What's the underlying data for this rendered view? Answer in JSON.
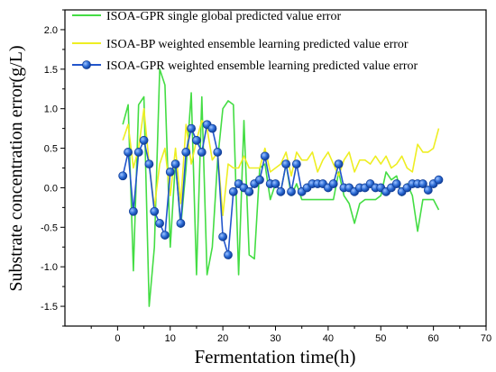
{
  "chart_data": {
    "type": "line",
    "xlabel": "Fermentation time(h)",
    "ylabel": "Substrate concentration error(g/L)",
    "xlim": [
      -10,
      70
    ],
    "ylim": [
      -1.75,
      2.25
    ],
    "xticks": [
      0,
      10,
      20,
      30,
      40,
      50,
      60,
      70
    ],
    "yticks": [
      -1.5,
      -1.0,
      -0.5,
      0.0,
      0.5,
      1.0,
      1.5,
      2.0
    ],
    "ytick_labels": [
      "-1.5",
      "-1.0",
      "-0.5",
      "0.0",
      "0.5",
      "1.0",
      "1.5",
      "2.0"
    ],
    "legend_position": "top",
    "series": [
      {
        "name": "ISOA-GPR single global predicted value error",
        "color": "#44dd44",
        "marker": "none",
        "x": [
          1,
          2,
          3,
          4,
          5,
          6,
          7,
          8,
          9,
          10,
          11,
          12,
          13,
          14,
          15,
          16,
          17,
          18,
          19,
          20,
          21,
          22,
          23,
          24,
          25,
          26,
          27,
          28,
          29,
          30,
          31,
          32,
          33,
          34,
          35,
          36,
          37,
          38,
          39,
          40,
          41,
          42,
          43,
          44,
          45,
          46,
          47,
          48,
          49,
          50,
          51,
          52,
          53,
          54,
          55,
          56,
          57,
          58,
          59,
          60,
          61
        ],
        "y": [
          0.8,
          1.05,
          -1.05,
          1.05,
          1.15,
          -1.5,
          -0.75,
          1.5,
          1.3,
          -0.75,
          0.35,
          -0.5,
          0.25,
          1.2,
          -1.1,
          1.15,
          -1.1,
          -0.75,
          0.35,
          1.0,
          1.1,
          1.05,
          -1.1,
          0.85,
          -0.85,
          -0.9,
          0.25,
          0.3,
          -0.15,
          0.05,
          -0.05,
          0.3,
          -0.1,
          0.05,
          -0.15,
          -0.15,
          -0.15,
          -0.15,
          -0.15,
          -0.15,
          -0.15,
          0.2,
          -0.1,
          -0.2,
          -0.45,
          -0.2,
          -0.15,
          -0.15,
          -0.15,
          -0.1,
          0.2,
          0.1,
          0.15,
          -0.1,
          0.05,
          -0.1,
          -0.55,
          -0.15,
          -0.15,
          -0.15,
          -0.28
        ]
      },
      {
        "name": "ISOA-BP weighted ensemble learning predicted value error",
        "color": "#eeee22",
        "marker": "none",
        "x": [
          1,
          2,
          3,
          4,
          5,
          6,
          7,
          8,
          9,
          10,
          11,
          12,
          13,
          14,
          15,
          16,
          17,
          18,
          19,
          20,
          21,
          22,
          23,
          24,
          25,
          26,
          27,
          28,
          29,
          30,
          31,
          32,
          33,
          34,
          35,
          36,
          37,
          38,
          39,
          40,
          41,
          42,
          43,
          44,
          45,
          46,
          47,
          48,
          49,
          50,
          51,
          52,
          53,
          54,
          55,
          56,
          57,
          58,
          59,
          60,
          61
        ],
        "y": [
          0.6,
          0.8,
          0.25,
          0.5,
          1.0,
          0.3,
          -0.25,
          0.3,
          0.5,
          -0.1,
          0.5,
          -0.2,
          0.8,
          0.3,
          0.6,
          0.85,
          0.75,
          0.35,
          0.45,
          -0.35,
          0.3,
          0.25,
          0.25,
          0.4,
          0.25,
          0.25,
          0.25,
          0.5,
          0.2,
          0.25,
          0.3,
          0.45,
          0.15,
          0.45,
          0.35,
          0.35,
          0.45,
          0.2,
          0.35,
          0.45,
          0.3,
          0.15,
          0.35,
          0.45,
          0.2,
          0.35,
          0.35,
          0.3,
          0.4,
          0.3,
          0.4,
          0.25,
          0.3,
          0.4,
          0.25,
          0.2,
          0.55,
          0.45,
          0.45,
          0.5,
          0.75
        ]
      },
      {
        "name": "ISOA-GPR weighted ensemble learning predicted value error",
        "color": "#2255cc",
        "marker": "circle",
        "x": [
          1,
          2,
          3,
          4,
          5,
          6,
          7,
          8,
          9,
          10,
          11,
          12,
          13,
          14,
          15,
          16,
          17,
          18,
          19,
          20,
          21,
          22,
          23,
          24,
          25,
          26,
          27,
          28,
          29,
          30,
          31,
          32,
          33,
          34,
          35,
          36,
          37,
          38,
          39,
          40,
          41,
          42,
          43,
          44,
          45,
          46,
          47,
          48,
          49,
          50,
          51,
          52,
          53,
          54,
          55,
          56,
          57,
          58,
          59,
          60,
          61
        ],
        "y": [
          0.15,
          0.45,
          -0.3,
          0.45,
          0.6,
          0.3,
          -0.3,
          -0.45,
          -0.6,
          0.2,
          0.3,
          -0.45,
          0.45,
          0.75,
          0.6,
          0.45,
          0.8,
          0.75,
          0.45,
          -0.62,
          -0.85,
          -0.05,
          0.05,
          0.0,
          -0.05,
          0.05,
          0.1,
          0.4,
          0.05,
          0.05,
          -0.05,
          0.3,
          -0.05,
          0.3,
          -0.05,
          0.0,
          0.05,
          0.05,
          0.05,
          0.0,
          0.05,
          0.3,
          0.0,
          0.0,
          -0.05,
          0.0,
          0.0,
          0.05,
          0.0,
          0.0,
          -0.05,
          0.0,
          0.05,
          -0.05,
          0.0,
          0.05,
          0.05,
          0.05,
          -0.03,
          0.05,
          0.1
        ]
      }
    ]
  }
}
